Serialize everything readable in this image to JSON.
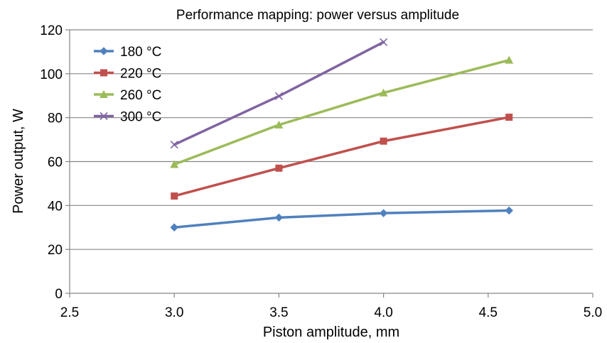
{
  "chart_data": {
    "type": "line",
    "title": "Performance mapping: power versus amplitude",
    "xlabel": "Piston amplitude, mm",
    "ylabel": "Power output, W",
    "xlim": [
      2.5,
      5.0
    ],
    "ylim": [
      0,
      120
    ],
    "xticks": [
      "2.5",
      "3.0",
      "3.5",
      "4.0",
      "4.5",
      "5.0"
    ],
    "yticks": [
      "0",
      "20",
      "40",
      "60",
      "80",
      "100",
      "120"
    ],
    "grid": "horizontal",
    "legend_position": "top-left",
    "series": [
      {
        "name": "180 °C",
        "color": "#4F81BD",
        "marker": "diamond",
        "x": [
          3.0,
          3.5,
          4.0,
          4.6
        ],
        "y": [
          30,
          34.5,
          36.5,
          37.7
        ]
      },
      {
        "name": "220 °C",
        "color": "#C0504D",
        "marker": "square",
        "x": [
          3.0,
          3.5,
          4.0,
          4.6
        ],
        "y": [
          44.3,
          57,
          69.3,
          80.2
        ]
      },
      {
        "name": "260 °C",
        "color": "#9BBB59",
        "marker": "triangle",
        "x": [
          3.0,
          3.5,
          4.0,
          4.6
        ],
        "y": [
          58.7,
          76.7,
          91.3,
          106.2
        ]
      },
      {
        "name": "300 °C",
        "color": "#8064A2",
        "marker": "x",
        "x": [
          3.0,
          3.5,
          4.0
        ],
        "y": [
          67.7,
          89.8,
          114.4
        ]
      }
    ]
  }
}
